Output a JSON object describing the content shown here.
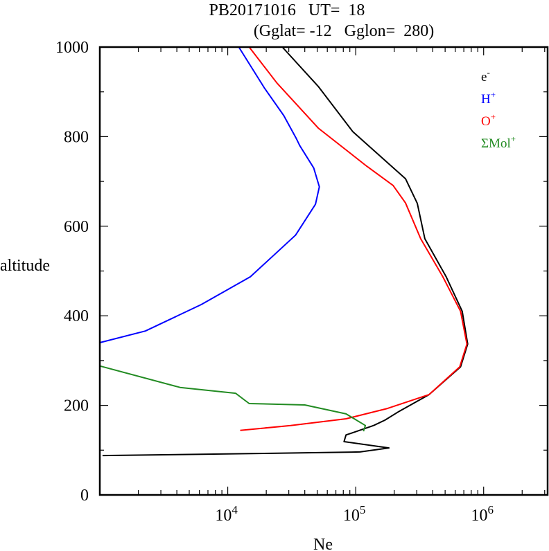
{
  "chart_data": {
    "type": "line",
    "title": "PB20171016   UT=  18",
    "subtitle": "(Gglat= -12   Gglon=  280)",
    "xlabel": "Ne",
    "ylabel": "altitude",
    "xscale": "log",
    "xlim": [
      1000,
      3162278
    ],
    "ylim": [
      0,
      1000
    ],
    "grid": false,
    "legend_position": "top-right",
    "x_tick_labels": [
      {
        "base": "10",
        "exp": "4",
        "value": 10000
      },
      {
        "base": "10",
        "exp": "5",
        "value": 100000
      },
      {
        "base": "10",
        "exp": "6",
        "value": 1000000
      }
    ],
    "y_ticks": [
      0,
      200,
      400,
      600,
      800,
      1000
    ],
    "y_tick_labels": [
      "0",
      "200",
      "400",
      "600",
      "800",
      "1000"
    ],
    "series": [
      {
        "name": "e-",
        "label_main": "e",
        "label_sup": "-",
        "color": "#000000",
        "points": [
          [
            26700,
            1000
          ],
          [
            51000,
            912
          ],
          [
            95000,
            811
          ],
          [
            177000,
            742
          ],
          [
            245000,
            706
          ],
          [
            303000,
            651
          ],
          [
            347000,
            572
          ],
          [
            510000,
            487
          ],
          [
            680000,
            410
          ],
          [
            750000,
            337
          ],
          [
            660000,
            286
          ],
          [
            374000,
            224
          ],
          [
            214000,
            185
          ],
          [
            169000,
            167
          ],
          [
            138000,
            155
          ],
          [
            95000,
            139
          ],
          [
            84000,
            134
          ],
          [
            81000,
            119
          ],
          [
            182000,
            105
          ],
          [
            108000,
            96
          ],
          [
            24200,
            93
          ],
          [
            1050,
            88
          ]
        ]
      },
      {
        "name": "H+",
        "label_main": "H",
        "label_sup": "+",
        "color": "#0000ff",
        "points": [
          [
            12200,
            1000
          ],
          [
            19300,
            909
          ],
          [
            27400,
            847
          ],
          [
            34300,
            796
          ],
          [
            36500,
            780
          ],
          [
            47000,
            730
          ],
          [
            52000,
            688
          ],
          [
            48500,
            649
          ],
          [
            33900,
            580
          ],
          [
            15000,
            487
          ],
          [
            6200,
            425
          ],
          [
            2270,
            366
          ],
          [
            1000,
            340
          ]
        ]
      },
      {
        "name": "O+",
        "label_main": "O",
        "label_sup": "+",
        "color": "#ff0000",
        "points": [
          [
            14700,
            1000
          ],
          [
            24200,
            920
          ],
          [
            51000,
            819
          ],
          [
            122000,
            734
          ],
          [
            196000,
            691
          ],
          [
            245000,
            652
          ],
          [
            322000,
            572
          ],
          [
            480000,
            487
          ],
          [
            660000,
            410
          ],
          [
            740000,
            337
          ],
          [
            650000,
            286
          ],
          [
            374000,
            224
          ],
          [
            177000,
            193
          ],
          [
            84000,
            170
          ],
          [
            31000,
            155
          ],
          [
            12500,
            144
          ]
        ]
      },
      {
        "name": "ΣMol+",
        "label_main": "ΣMol",
        "label_sup": "+",
        "color": "#228b22",
        "points": [
          [
            1000,
            288
          ],
          [
            4240,
            240
          ],
          [
            11500,
            227
          ],
          [
            14700,
            204
          ],
          [
            40000,
            201
          ],
          [
            84000,
            181
          ],
          [
            119000,
            155
          ],
          [
            115000,
            142
          ]
        ]
      }
    ]
  }
}
